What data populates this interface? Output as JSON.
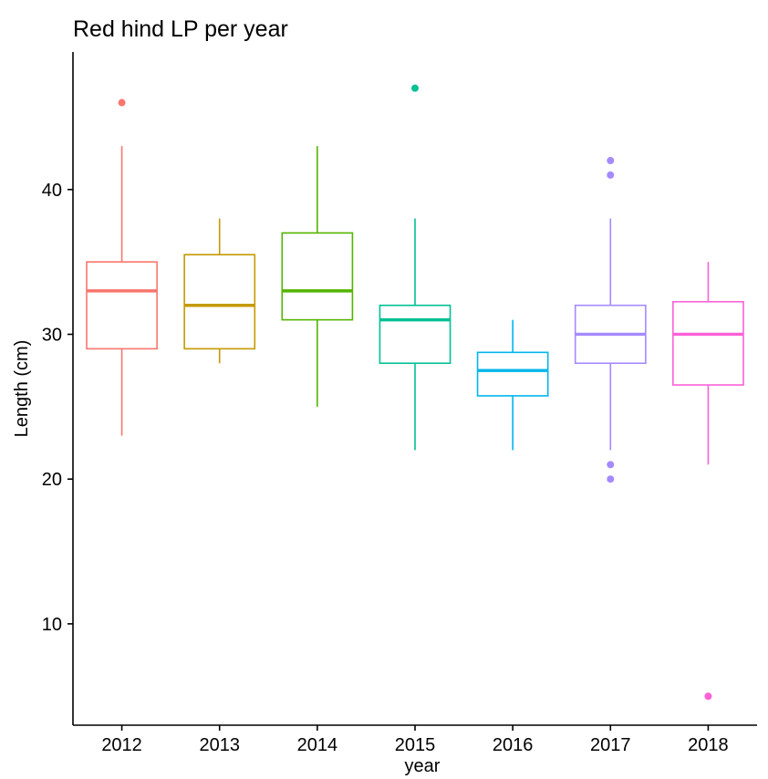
{
  "chart_data": {
    "type": "boxplot",
    "title": "Red hind LP per year",
    "xlabel": "year",
    "ylabel": "Length (cm)",
    "ylim": [
      3,
      49.5
    ],
    "yticks": [
      10,
      20,
      30,
      40
    ],
    "grid": false,
    "legend": "none",
    "categories": [
      "2012",
      "2013",
      "2014",
      "2015",
      "2016",
      "2017",
      "2018"
    ],
    "boxes": [
      {
        "x": "2012",
        "min": 23,
        "q1": 29,
        "median": 33,
        "q3": 35,
        "max": 43,
        "outliers": [
          46
        ],
        "color": "#F8766D"
      },
      {
        "x": "2013",
        "min": 28,
        "q1": 29,
        "median": 32,
        "q3": 35.5,
        "max": 38,
        "outliers": [],
        "color": "#C49A00"
      },
      {
        "x": "2014",
        "min": 25,
        "q1": 31,
        "median": 33,
        "q3": 37,
        "max": 43,
        "outliers": [],
        "color": "#53B400"
      },
      {
        "x": "2015",
        "min": 22,
        "q1": 28,
        "median": 31,
        "q3": 32,
        "max": 38,
        "outliers": [
          47
        ],
        "color": "#00C094"
      },
      {
        "x": "2016",
        "min": 22,
        "q1": 25.75,
        "median": 27.5,
        "q3": 28.75,
        "max": 31,
        "outliers": [],
        "color": "#00B6EB"
      },
      {
        "x": "2017",
        "min": 22,
        "q1": 28,
        "median": 30,
        "q3": 32,
        "max": 38,
        "outliers": [
          42,
          41,
          21,
          20
        ],
        "color": "#A58AFF"
      },
      {
        "x": "2018",
        "min": 21,
        "q1": 26.5,
        "median": 30,
        "q3": 32.25,
        "max": 35,
        "outliers": [
          5
        ],
        "color": "#FB61D7"
      }
    ]
  }
}
